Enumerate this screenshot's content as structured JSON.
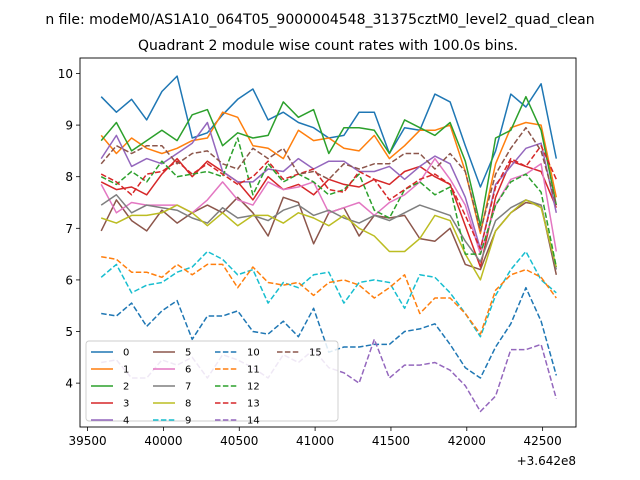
{
  "suptitle": "n file: modeM0/AS1A10_064T05_9000004548_31375cztM0_level2_quad_clean",
  "chart_data": {
    "type": "line",
    "title": "Quadrant 2 module wise count rates with 100.0s bins.",
    "xlabel": "",
    "ylabel": "",
    "x_offset_label": "+3.642e8",
    "xlim": [
      39450,
      42720
    ],
    "ylim": [
      3.15,
      10.3
    ],
    "xticks": [
      39500,
      40000,
      40500,
      41000,
      41500,
      42000,
      42500
    ],
    "yticks": [
      4,
      5,
      6,
      7,
      8,
      9,
      10
    ],
    "legend_position": "lower-left",
    "legend_columns": 4,
    "x": [
      39590,
      39690,
      39790,
      39890,
      39990,
      40090,
      40190,
      40290,
      40390,
      40490,
      40590,
      40690,
      40790,
      40890,
      40990,
      41090,
      41190,
      41290,
      41390,
      41490,
      41590,
      41690,
      41790,
      41890,
      41990,
      42090,
      42190,
      42290,
      42390,
      42490,
      42590
    ],
    "series": [
      {
        "name": "0",
        "color": "#1f77b4",
        "dash": "solid",
        "values": [
          9.55,
          9.25,
          9.5,
          9.1,
          9.65,
          9.95,
          8.75,
          8.85,
          9.2,
          9.5,
          9.7,
          9.1,
          9.25,
          9.05,
          8.95,
          8.75,
          8.8,
          9.25,
          9.25,
          8.45,
          8.95,
          8.9,
          9.6,
          9.45,
          8.6,
          7.8,
          8.5,
          9.6,
          9.35,
          9.8,
          8.35
        ]
      },
      {
        "name": "1",
        "color": "#ff7f0e",
        "dash": "solid",
        "values": [
          8.8,
          8.45,
          8.75,
          8.55,
          8.45,
          8.55,
          8.7,
          8.75,
          9.25,
          9.15,
          8.6,
          8.55,
          8.35,
          8.9,
          8.7,
          8.75,
          8.55,
          8.5,
          8.8,
          8.35,
          8.6,
          8.9,
          8.9,
          9.0,
          8.1,
          6.9,
          8.25,
          8.95,
          9.05,
          9.0,
          7.6
        ]
      },
      {
        "name": "2",
        "color": "#2ca02c",
        "dash": "solid",
        "values": [
          8.7,
          9.05,
          8.5,
          8.7,
          8.9,
          8.7,
          9.2,
          9.3,
          8.6,
          8.85,
          8.75,
          8.8,
          9.45,
          9.15,
          9.3,
          8.45,
          8.95,
          8.95,
          8.9,
          8.45,
          9.1,
          8.95,
          8.8,
          9.05,
          8.3,
          7.05,
          8.75,
          8.9,
          9.55,
          8.9,
          7.45
        ]
      },
      {
        "name": "3",
        "color": "#d62728",
        "dash": "solid",
        "values": [
          7.9,
          7.75,
          7.8,
          7.65,
          8.05,
          8.35,
          8.0,
          8.3,
          8.1,
          7.9,
          7.55,
          8.0,
          7.75,
          7.85,
          7.65,
          7.95,
          7.85,
          7.8,
          7.95,
          7.85,
          8.1,
          8.2,
          8.0,
          7.85,
          7.05,
          6.25,
          7.6,
          8.3,
          8.2,
          8.1,
          7.4
        ]
      },
      {
        "name": "4",
        "color": "#9467bd",
        "dash": "solid",
        "values": [
          8.35,
          8.8,
          8.2,
          8.35,
          8.25,
          8.45,
          8.65,
          9.05,
          8.1,
          7.9,
          7.9,
          8.15,
          8.1,
          8.35,
          8.15,
          8.3,
          8.3,
          8.1,
          8.1,
          8.2,
          7.95,
          8.2,
          8.4,
          8.25,
          7.6,
          6.6,
          7.85,
          8.2,
          8.55,
          8.65,
          7.3
        ]
      },
      {
        "name": "5",
        "color": "#8c564b",
        "dash": "solid",
        "values": [
          6.95,
          7.55,
          7.15,
          6.95,
          7.35,
          7.1,
          7.3,
          7.45,
          7.3,
          7.6,
          7.3,
          6.85,
          7.6,
          7.5,
          6.7,
          7.3,
          7.4,
          6.85,
          7.25,
          7.2,
          7.25,
          6.8,
          6.75,
          7.0,
          6.3,
          6.2,
          6.95,
          7.3,
          7.5,
          7.45,
          6.1
        ]
      },
      {
        "name": "6",
        "color": "#e377c2",
        "dash": "solid",
        "values": [
          7.85,
          7.3,
          7.5,
          7.45,
          7.45,
          7.45,
          7.3,
          7.55,
          7.9,
          7.55,
          7.45,
          7.9,
          7.75,
          7.8,
          7.9,
          7.3,
          7.4,
          7.5,
          7.25,
          7.5,
          7.65,
          7.9,
          8.35,
          7.95,
          7.45,
          6.5,
          7.45,
          7.95,
          8.05,
          8.25,
          6.55
        ]
      },
      {
        "name": "7",
        "color": "#7f7f7f",
        "dash": "solid",
        "values": [
          7.45,
          7.65,
          7.3,
          7.45,
          7.4,
          7.35,
          7.2,
          7.1,
          7.4,
          7.2,
          7.25,
          7.15,
          7.35,
          7.45,
          7.25,
          7.35,
          7.2,
          7.1,
          7.25,
          7.15,
          7.3,
          7.45,
          7.35,
          7.25,
          6.75,
          6.35,
          7.15,
          7.4,
          7.55,
          7.45,
          6.2
        ]
      },
      {
        "name": "8",
        "color": "#bcbd22",
        "dash": "solid",
        "values": [
          7.2,
          7.1,
          7.25,
          7.25,
          7.3,
          7.45,
          7.3,
          7.05,
          7.3,
          7.05,
          7.25,
          7.25,
          7.1,
          7.3,
          7.2,
          7.05,
          7.25,
          7.0,
          6.85,
          6.55,
          6.55,
          6.8,
          7.25,
          7.15,
          6.5,
          6.0,
          6.95,
          7.3,
          7.55,
          7.4,
          6.25
        ]
      },
      {
        "name": "9",
        "color": "#17becf",
        "dash": "dashed",
        "values": [
          6.05,
          6.3,
          5.75,
          5.9,
          5.95,
          6.15,
          6.25,
          6.55,
          6.4,
          6.1,
          6.2,
          5.55,
          5.95,
          5.85,
          6.1,
          6.15,
          5.55,
          5.95,
          6.0,
          5.95,
          5.45,
          6.1,
          6.05,
          5.75,
          5.35,
          4.9,
          5.7,
          6.2,
          6.55,
          6.0,
          5.75
        ]
      },
      {
        "name": "10",
        "color": "#1f77b4",
        "dash": "dashed",
        "values": [
          5.35,
          5.3,
          5.55,
          5.1,
          5.4,
          5.6,
          4.85,
          5.3,
          5.3,
          5.4,
          5.0,
          4.95,
          5.2,
          4.9,
          5.45,
          4.6,
          4.7,
          4.7,
          4.75,
          4.75,
          5.0,
          5.05,
          5.15,
          4.75,
          4.3,
          4.1,
          4.7,
          5.15,
          5.85,
          5.2,
          4.15
        ]
      },
      {
        "name": "11",
        "color": "#ff7f0e",
        "dash": "dashed",
        "values": [
          6.45,
          6.4,
          6.15,
          6.15,
          6.05,
          6.3,
          6.1,
          6.3,
          6.3,
          5.85,
          6.25,
          5.95,
          5.9,
          5.95,
          5.7,
          5.95,
          6.0,
          5.9,
          5.65,
          5.85,
          6.1,
          5.35,
          5.65,
          5.65,
          5.35,
          4.95,
          5.8,
          6.1,
          6.2,
          6.05,
          5.65
        ]
      },
      {
        "name": "12",
        "color": "#2ca02c",
        "dash": "dashed",
        "values": [
          8.0,
          7.85,
          8.1,
          7.9,
          8.3,
          8.0,
          8.05,
          8.1,
          8.0,
          8.75,
          7.65,
          8.25,
          7.9,
          8.05,
          7.9,
          7.65,
          7.75,
          8.05,
          7.35,
          7.2,
          7.75,
          7.9,
          7.65,
          7.8,
          6.5,
          6.5,
          7.45,
          7.9,
          8.05,
          7.7,
          6.25
        ]
      },
      {
        "name": "13",
        "color": "#d62728",
        "dash": "dashed",
        "values": [
          8.05,
          7.9,
          7.65,
          8.05,
          8.1,
          8.3,
          8.05,
          8.25,
          8.05,
          7.85,
          8.0,
          8.3,
          7.95,
          8.05,
          8.15,
          7.75,
          7.7,
          8.1,
          7.95,
          7.55,
          7.75,
          7.95,
          8.05,
          7.85,
          7.25,
          6.6,
          7.8,
          8.35,
          8.2,
          8.6,
          7.95
        ]
      },
      {
        "name": "14",
        "color": "#9467bd",
        "dash": "dashed",
        "values": [
          4.4,
          4.45,
          4.1,
          4.1,
          4.45,
          4.35,
          4.5,
          4.1,
          4.55,
          4.45,
          4.3,
          4.1,
          4.55,
          4.4,
          4.65,
          4.3,
          4.2,
          4.0,
          4.85,
          4.1,
          4.35,
          4.35,
          4.4,
          4.25,
          3.95,
          3.45,
          3.75,
          4.65,
          4.65,
          4.75,
          3.7
        ]
      },
      {
        "name": "15",
        "color": "#8c564b",
        "dash": "dashed",
        "values": [
          8.25,
          8.6,
          8.45,
          8.6,
          8.6,
          8.25,
          8.45,
          8.5,
          8.25,
          8.15,
          8.55,
          8.35,
          8.55,
          8.05,
          8.1,
          7.95,
          8.25,
          8.15,
          8.25,
          8.25,
          8.45,
          8.45,
          8.15,
          8.45,
          8.1,
          6.95,
          8.05,
          8.55,
          8.95,
          8.5,
          7.45
        ]
      }
    ]
  }
}
